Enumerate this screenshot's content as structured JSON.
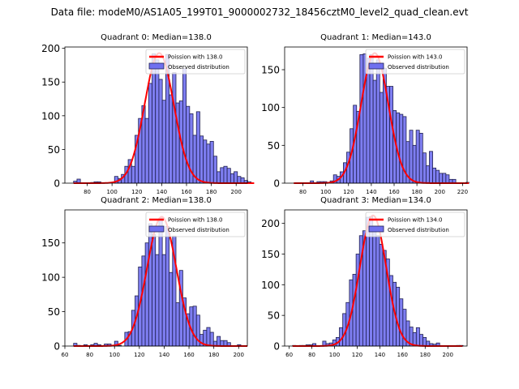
{
  "figure": {
    "suptitle": "Data file: modeM0/AS1A05_199T01_9000002732_18456cztM0_level2_quad_clean.evt"
  },
  "colors": {
    "bar_fill": "#7070f0",
    "bar_edge": "#202050",
    "fit_line": "#ff0000"
  },
  "chart_data": [
    {
      "type": "bar",
      "title": "Quadrant 0: Median=138.0",
      "xlabel": "",
      "ylabel": "",
      "xlim": [
        62,
        209
      ],
      "ylim": [
        0,
        202
      ],
      "xticks": [
        80,
        100,
        120,
        140,
        160,
        180,
        200
      ],
      "yticks": [
        0,
        50,
        100,
        150,
        200
      ],
      "legend": {
        "position": "top-right",
        "entries": [
          "Poission with 138.0",
          "Observed distribution"
        ]
      },
      "median": 138.0,
      "bin_start": 69,
      "bin_width": 2.75,
      "values": [
        3,
        6,
        0,
        0,
        0,
        1,
        2,
        2,
        0,
        0,
        0,
        0,
        10,
        7,
        13,
        25,
        35,
        25,
        71,
        96,
        115,
        96,
        148,
        192,
        183,
        154,
        123,
        191,
        131,
        164,
        119,
        122,
        170,
        114,
        103,
        71,
        106,
        70,
        64,
        58,
        62,
        40,
        17,
        23,
        25,
        22,
        14,
        17,
        10,
        8,
        4,
        2,
        0
      ],
      "series": [
        {
          "name": "Observed distribution",
          "kind": "histogram"
        },
        {
          "name": "Poission with 138.0",
          "kind": "line",
          "mean": 138.0,
          "peak": 193
        }
      ]
    },
    {
      "type": "bar",
      "title": "Quadrant 1: Median=143.0",
      "xlabel": "",
      "ylabel": "",
      "xlim": [
        64,
        224
      ],
      "ylim": [
        0,
        180
      ],
      "xticks": [
        80,
        100,
        120,
        140,
        160,
        180,
        200,
        220
      ],
      "yticks": [
        0,
        50,
        100,
        150
      ],
      "legend": {
        "position": "top-right",
        "entries": [
          "Poission with 143.0",
          "Observed distribution"
        ]
      },
      "median": 143.0,
      "bin_start": 72,
      "bin_width": 2.9,
      "values": [
        0,
        0,
        0,
        0,
        0,
        3,
        0,
        2,
        2,
        2,
        0,
        3,
        11,
        9,
        15,
        27,
        41,
        72,
        103,
        95,
        170,
        171,
        165,
        170,
        136,
        163,
        120,
        152,
        128,
        128,
        96,
        93,
        91,
        88,
        55,
        70,
        50,
        70,
        66,
        40,
        23,
        42,
        20,
        17,
        13,
        13,
        11,
        5,
        5,
        0,
        0,
        0,
        1
      ],
      "series": [
        {
          "name": "Observed distribution",
          "kind": "histogram"
        },
        {
          "name": "Poission with 143.0",
          "kind": "line",
          "mean": 143.0,
          "peak": 172
        }
      ]
    },
    {
      "type": "bar",
      "title": "Quadrant 2: Median=138.0",
      "xlabel": "",
      "ylabel": "",
      "xlim": [
        60,
        207
      ],
      "ylim": [
        0,
        198
      ],
      "xticks": [
        60,
        80,
        100,
        120,
        140,
        160,
        180,
        200
      ],
      "yticks": [
        0,
        50,
        100,
        150
      ],
      "legend": {
        "position": "top-right",
        "entries": [
          "Poission with 138.0",
          "Observed distribution"
        ]
      },
      "median": 138.0,
      "bin_start": 67,
      "bin_width": 2.75,
      "values": [
        4,
        1,
        0,
        2,
        0,
        2,
        4,
        2,
        0,
        3,
        3,
        0,
        7,
        1,
        0,
        20,
        21,
        52,
        73,
        115,
        131,
        150,
        178,
        162,
        133,
        186,
        133,
        174,
        107,
        160,
        63,
        110,
        70,
        47,
        57,
        58,
        45,
        17,
        23,
        27,
        20,
        7,
        14,
        8,
        8,
        5,
        0,
        0,
        2,
        0,
        0
      ],
      "series": [
        {
          "name": "Observed distribution",
          "kind": "histogram"
        },
        {
          "name": "Poission with 138.0",
          "kind": "line",
          "mean": 138.0,
          "peak": 188
        }
      ]
    },
    {
      "type": "bar",
      "title": "Quadrant 3: Median=134.0",
      "xlabel": "",
      "ylabel": "",
      "xlim": [
        56,
        217
      ],
      "ylim": [
        0,
        222
      ],
      "xticks": [
        60,
        80,
        100,
        120,
        140,
        160,
        180,
        200
      ],
      "yticks": [
        0,
        50,
        100,
        150,
        200
      ],
      "legend": {
        "position": "top-right",
        "entries": [
          "Poission with 134.0",
          "Observed distribution"
        ]
      },
      "median": 134.0,
      "bin_start": 63,
      "bin_width": 2.95,
      "values": [
        1,
        0,
        1,
        1,
        2,
        2,
        4,
        0,
        0,
        8,
        4,
        5,
        10,
        14,
        30,
        53,
        71,
        108,
        117,
        150,
        180,
        188,
        210,
        211,
        187,
        180,
        166,
        156,
        142,
        115,
        104,
        96,
        77,
        60,
        41,
        31,
        22,
        30,
        19,
        14,
        8,
        4,
        3,
        5,
        0,
        0,
        0,
        0,
        0,
        1,
        1
      ],
      "series": [
        {
          "name": "Observed distribution",
          "kind": "histogram"
        },
        {
          "name": "Poission with 134.0",
          "kind": "line",
          "mean": 134.0,
          "peak": 213
        }
      ]
    }
  ]
}
